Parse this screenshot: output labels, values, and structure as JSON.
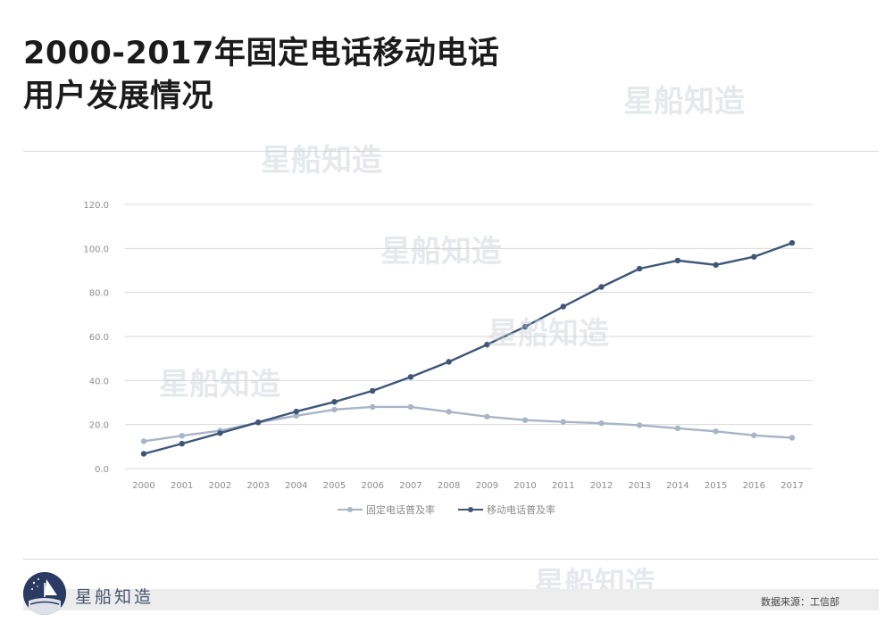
{
  "header": {
    "title_line1": "2000-2017年固定电话移动电话",
    "title_line2": "用户发展情况"
  },
  "watermark": "星船知造",
  "brand": {
    "name": "星船知造"
  },
  "footer": {
    "source": "数据来源：工信部"
  },
  "colors": {
    "fixed": "#a9b4c6",
    "mobile": "#3f5677",
    "grid": "#d9d9d9",
    "axis_text": "#8c8c8c"
  },
  "chart_data": {
    "type": "line",
    "title": "",
    "xlabel": "",
    "ylabel": "",
    "ylim": [
      0,
      120
    ],
    "yticks": [
      0,
      20,
      40,
      60,
      80,
      100,
      120
    ],
    "ytick_labels": [
      "0.0",
      "20.0",
      "40.0",
      "60.0",
      "80.0",
      "100.0",
      "120.0"
    ],
    "grid": true,
    "legend_position": "bottom",
    "x": [
      "2000",
      "2001",
      "2002",
      "2003",
      "2004",
      "2005",
      "2006",
      "2007",
      "2008",
      "2009",
      "2010",
      "2011",
      "2012",
      "2013",
      "2014",
      "2015",
      "2016",
      "2017"
    ],
    "series": [
      {
        "name": "固定电话普及率",
        "values": [
          12.4,
          14.9,
          17.2,
          20.9,
          24.0,
          26.8,
          28.0,
          28.0,
          25.8,
          23.6,
          22.0,
          21.2,
          20.6,
          19.7,
          18.3,
          16.9,
          15.1,
          14.0
        ]
      },
      {
        "name": "移动电话普及率",
        "values": [
          6.7,
          11.3,
          16.1,
          21.0,
          25.9,
          30.3,
          35.3,
          41.6,
          48.5,
          56.3,
          64.4,
          73.6,
          82.5,
          90.8,
          94.5,
          92.5,
          96.2,
          102.5
        ]
      }
    ]
  }
}
